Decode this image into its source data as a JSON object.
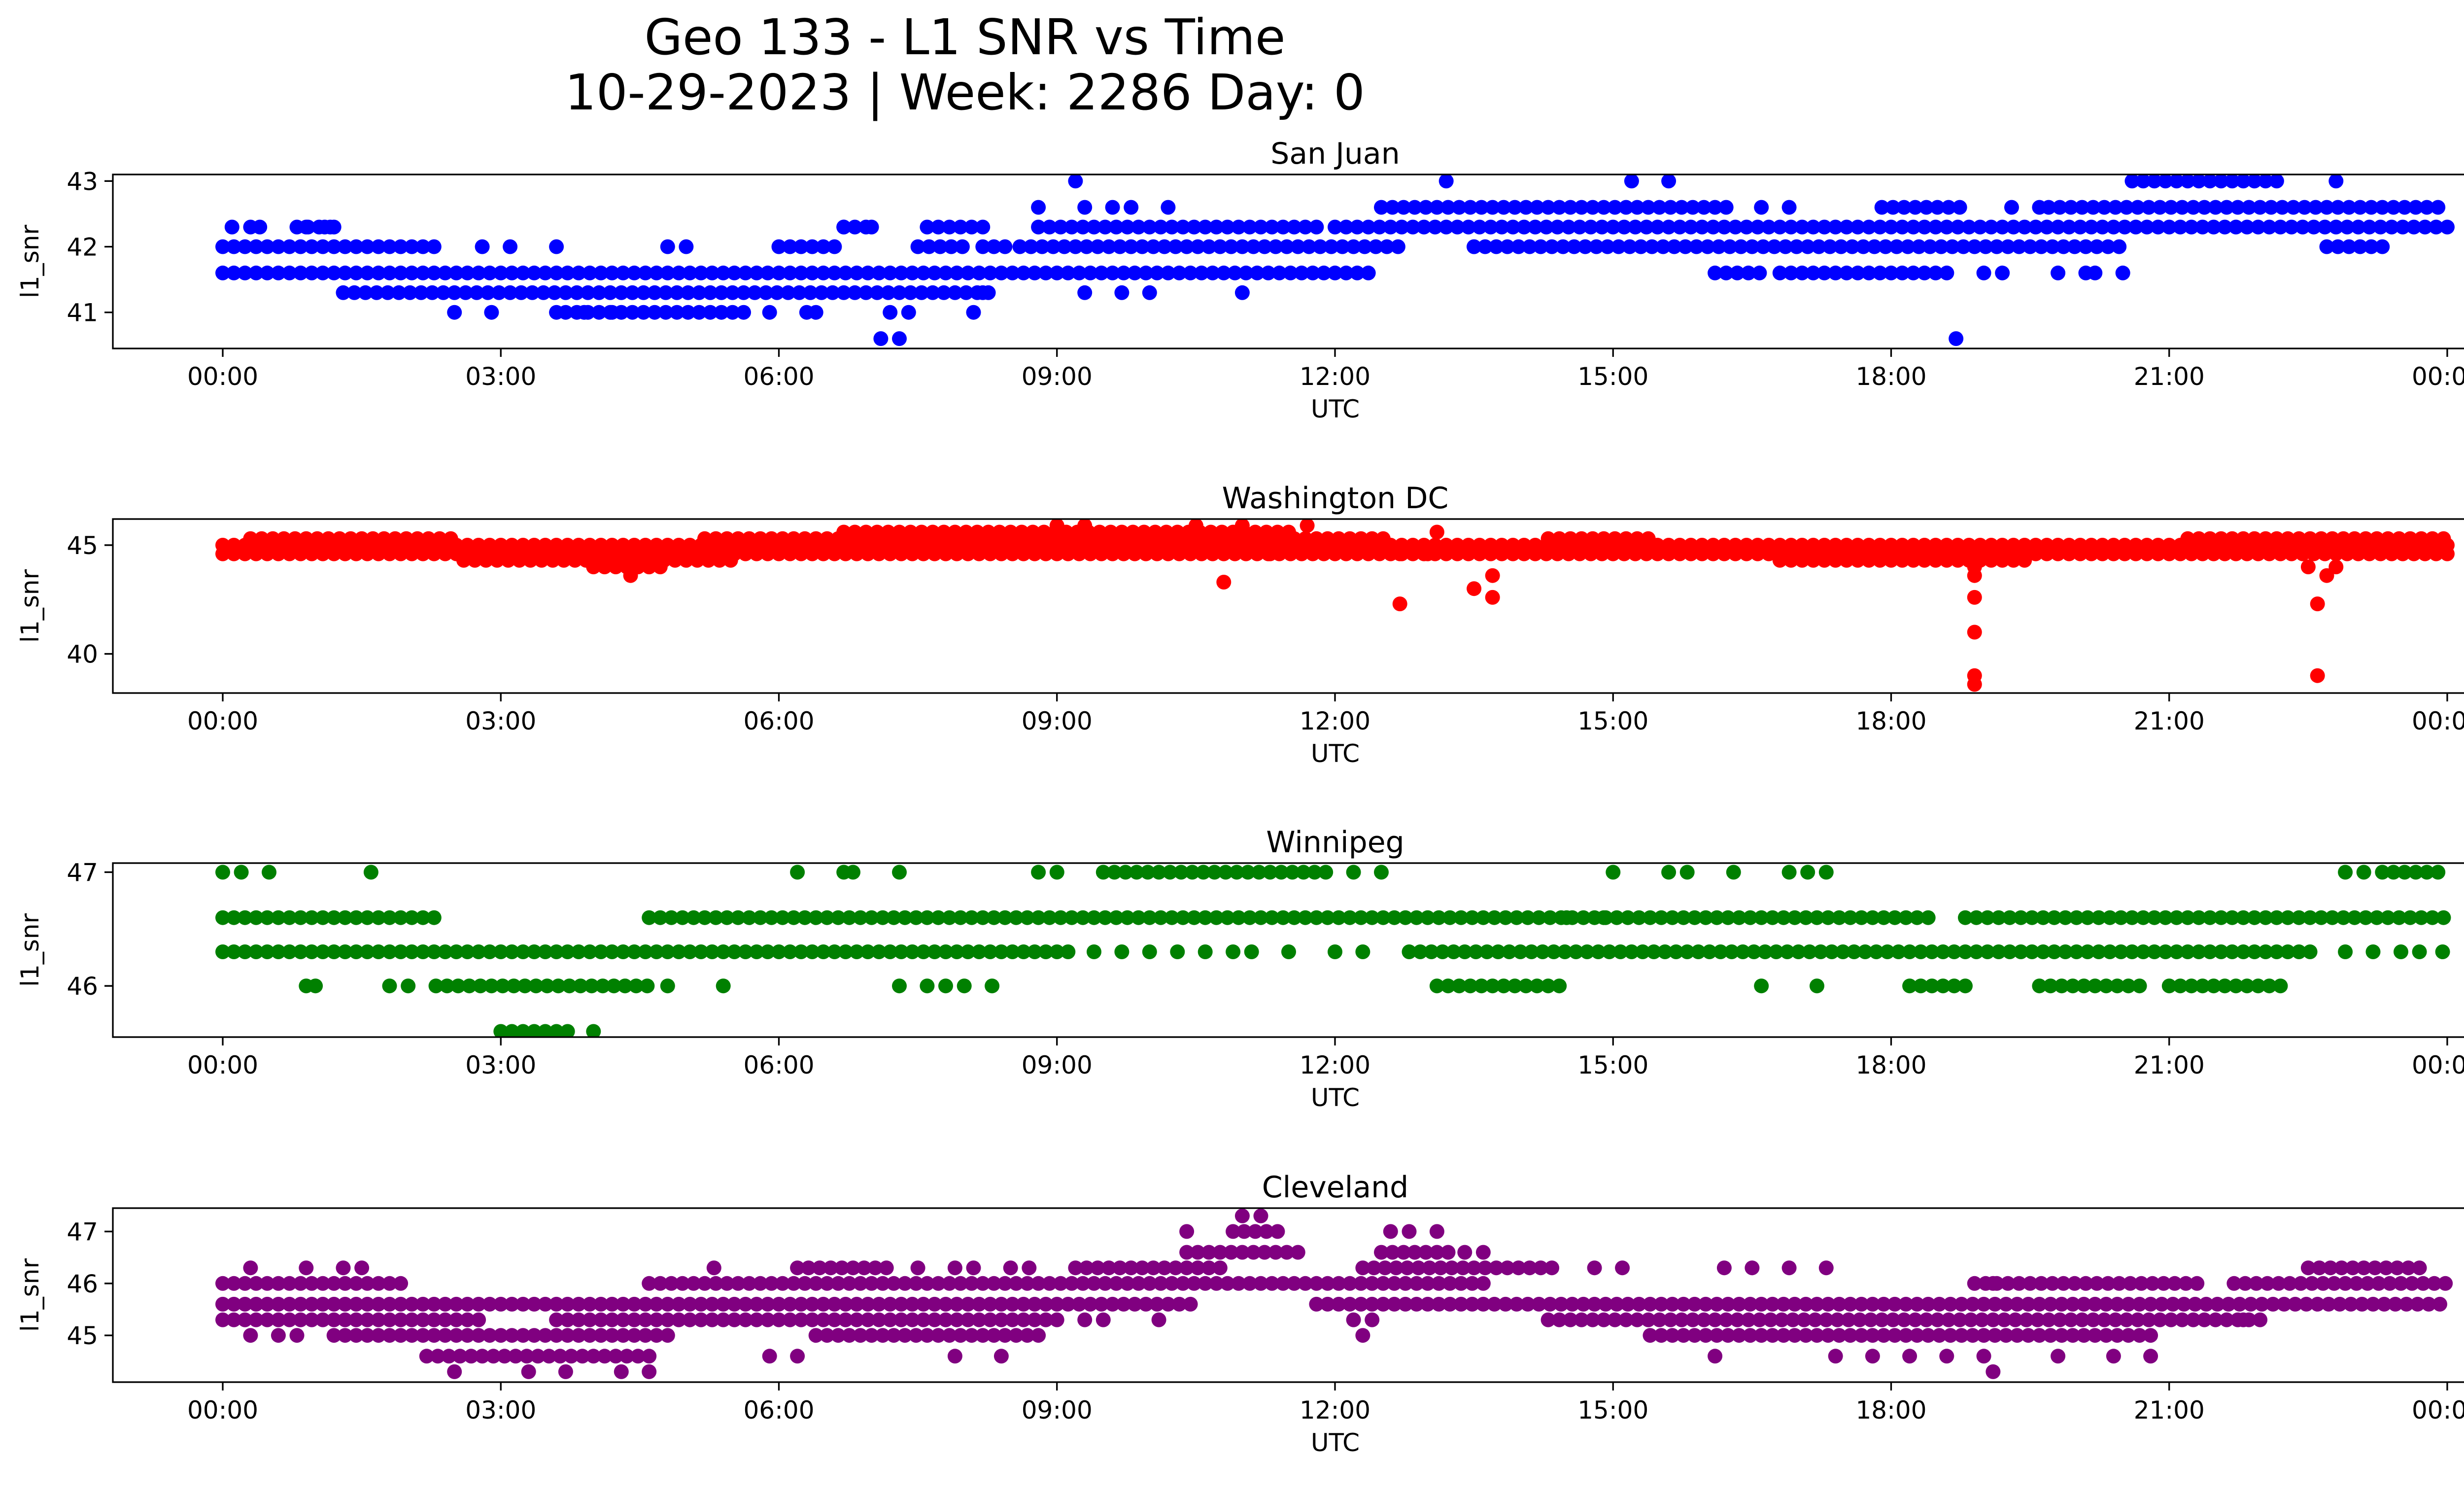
{
  "figure": {
    "title_line1": "Geo 133 - L1 SNR vs Time",
    "title_line2": "10-29-2023 | Week: 2286 Day: 0"
  },
  "chart_data": [
    {
      "type": "scatter",
      "title": "San Juan",
      "xlabel": "UTC",
      "ylabel": "l1_snr",
      "color": "#0000ff",
      "x_range_hours": [
        0,
        24
      ],
      "ylim": [
        40.45,
        43.1
      ],
      "yticks": [
        41,
        42,
        43
      ],
      "xticks": [
        "00:00",
        "03:00",
        "06:00",
        "09:00",
        "12:00",
        "15:00",
        "18:00",
        "21:00",
        "00:00"
      ],
      "grid": false,
      "band_segments": [
        {
          "y": 41.6,
          "ranges": [
            [
              0.0,
              12.4
            ],
            [
              16.1,
              16.6
            ],
            [
              16.8,
              18.6
            ]
          ]
        },
        {
          "y": 42.0,
          "ranges": [
            [
              0.0,
              2.3
            ],
            [
              6.0,
              6.6
            ],
            [
              7.5,
              8.0
            ],
            [
              8.2,
              8.5
            ],
            [
              8.6,
              12.7
            ],
            [
              13.5,
              20.5
            ],
            [
              22.7,
              23.3
            ]
          ]
        },
        {
          "y": 41.3,
          "ranges": [
            [
              1.3,
              8.3
            ]
          ]
        },
        {
          "y": 42.3,
          "ranges": [
            [
              0.8,
              1.2
            ],
            [
              6.7,
              7.0
            ],
            [
              7.6,
              8.2
            ],
            [
              8.8,
              11.8
            ],
            [
              12.0,
              24.0
            ]
          ]
        },
        {
          "y": 42.6,
          "ranges": [
            [
              12.5,
              16.3
            ],
            [
              17.9,
              18.8
            ],
            [
              19.7,
              24.0
            ]
          ]
        },
        {
          "y": 41.0,
          "ranges": [
            [
              3.7,
              5.7
            ]
          ]
        },
        {
          "y": 43.0,
          "ranges": [
            [
              20.6,
              22.2
            ]
          ]
        }
      ],
      "isolated_points": [
        [
          0.1,
          42.3
        ],
        [
          0.3,
          42.3
        ],
        [
          0.4,
          42.3
        ],
        [
          0.9,
          42.3
        ],
        [
          1.1,
          42.3
        ],
        [
          1.2,
          42.3
        ],
        [
          2.5,
          41.0
        ],
        [
          2.8,
          42.0
        ],
        [
          2.9,
          41.0
        ],
        [
          3.1,
          42.0
        ],
        [
          3.6,
          42.0
        ],
        [
          3.6,
          41.0
        ],
        [
          3.9,
          41.0
        ],
        [
          4.2,
          41.0
        ],
        [
          4.8,
          42.0
        ],
        [
          5.0,
          42.0
        ],
        [
          5.9,
          41.0
        ],
        [
          6.3,
          41.0
        ],
        [
          6.4,
          41.0
        ],
        [
          6.7,
          42.3
        ],
        [
          7.0,
          42.3
        ],
        [
          7.1,
          40.6
        ],
        [
          7.2,
          41.0
        ],
        [
          7.3,
          40.6
        ],
        [
          7.4,
          41.0
        ],
        [
          8.1,
          41.0
        ],
        [
          8.2,
          41.3
        ],
        [
          8.8,
          42.6
        ],
        [
          9.2,
          43.0
        ],
        [
          9.3,
          42.6
        ],
        [
          9.6,
          42.6
        ],
        [
          9.8,
          42.6
        ],
        [
          9.3,
          41.3
        ],
        [
          9.7,
          41.3
        ],
        [
          10.0,
          41.3
        ],
        [
          10.2,
          42.6
        ],
        [
          11.0,
          41.3
        ],
        [
          13.2,
          43.0
        ],
        [
          13.5,
          42.0
        ],
        [
          15.2,
          43.0
        ],
        [
          15.6,
          43.0
        ],
        [
          16.6,
          42.6
        ],
        [
          16.9,
          42.6
        ],
        [
          18.7,
          40.6
        ],
        [
          19.0,
          41.6
        ],
        [
          19.2,
          41.6
        ],
        [
          19.3,
          42.6
        ],
        [
          19.6,
          42.6
        ],
        [
          19.8,
          41.6
        ],
        [
          20.1,
          41.6
        ],
        [
          20.5,
          41.6
        ],
        [
          20.2,
          41.6
        ],
        [
          22.8,
          43.0
        ]
      ]
    },
    {
      "type": "scatter",
      "title": "Washington DC",
      "xlabel": "UTC",
      "ylabel": "l1_snr",
      "color": "#ff0000",
      "x_range_hours": [
        0,
        24
      ],
      "ylim": [
        38.2,
        46.2
      ],
      "yticks": [
        40,
        45
      ],
      "xticks": [
        "00:00",
        "03:00",
        "06:00",
        "09:00",
        "12:00",
        "15:00",
        "18:00",
        "21:00",
        "00:00"
      ],
      "grid": false,
      "band_segments": [
        {
          "y": 44.6,
          "ranges": [
            [
              0.0,
              24.0
            ]
          ]
        },
        {
          "y": 45.0,
          "ranges": [
            [
              0.0,
              24.0
            ]
          ]
        },
        {
          "y": 45.3,
          "ranges": [
            [
              0.3,
              2.5
            ],
            [
              5.2,
              12.6
            ],
            [
              14.3,
              15.4
            ],
            [
              21.2,
              24.0
            ]
          ]
        },
        {
          "y": 44.3,
          "ranges": [
            [
              2.6,
              5.5
            ],
            [
              16.8,
              19.5
            ]
          ]
        },
        {
          "y": 45.6,
          "ranges": [
            [
              6.7,
              11.6
            ]
          ]
        },
        {
          "y": 44.0,
          "ranges": [
            [
              4.0,
              4.8
            ]
          ]
        }
      ],
      "isolated_points": [
        [
          4.4,
          43.6
        ],
        [
          4.6,
          44.0
        ],
        [
          9.0,
          45.9
        ],
        [
          9.3,
          45.9
        ],
        [
          10.5,
          45.9
        ],
        [
          10.8,
          43.3
        ],
        [
          11.0,
          45.9
        ],
        [
          11.3,
          44.6
        ],
        [
          11.7,
          45.9
        ],
        [
          12.7,
          42.3
        ],
        [
          12.7,
          44.6
        ],
        [
          13.0,
          44.6
        ],
        [
          13.5,
          43.0
        ],
        [
          13.7,
          43.6
        ],
        [
          13.7,
          42.6
        ],
        [
          13.1,
          45.6
        ],
        [
          18.9,
          43.6
        ],
        [
          18.9,
          42.6
        ],
        [
          18.9,
          41.0
        ],
        [
          18.9,
          39.0
        ],
        [
          18.9,
          38.6
        ],
        [
          18.9,
          44.0
        ],
        [
          22.6,
          42.3
        ],
        [
          22.6,
          39.0
        ],
        [
          22.5,
          44.0
        ],
        [
          22.7,
          43.6
        ],
        [
          22.8,
          44.0
        ]
      ]
    },
    {
      "type": "scatter",
      "title": "Winnipeg",
      "xlabel": "UTC",
      "ylabel": "l1_snr",
      "color": "#008000",
      "x_range_hours": [
        0,
        24
      ],
      "ylim": [
        45.55,
        47.08
      ],
      "yticks": [
        46,
        47
      ],
      "xticks": [
        "00:00",
        "03:00",
        "06:00",
        "09:00",
        "12:00",
        "15:00",
        "18:00",
        "21:00",
        "00:00"
      ],
      "grid": false,
      "band_segments": [
        {
          "y": 46.6,
          "ranges": [
            [
              0.0,
              2.3
            ],
            [
              4.6,
              18.4
            ],
            [
              18.8,
              24.0
            ]
          ]
        },
        {
          "y": 46.3,
          "ranges": [
            [
              0.0,
              9.2
            ],
            [
              12.8,
              22.6
            ]
          ]
        },
        {
          "y": 46.0,
          "ranges": [
            [
              2.3,
              4.6
            ],
            [
              13.1,
              14.5
            ],
            [
              18.2,
              18.9
            ],
            [
              19.6,
              20.7
            ],
            [
              21.0,
              22.2
            ]
          ]
        },
        {
          "y": 47.0,
          "ranges": [
            [
              9.5,
              12.0
            ],
            [
              23.3,
              24.0
            ]
          ]
        },
        {
          "y": 45.6,
          "ranges": [
            [
              3.0,
              3.8
            ]
          ]
        }
      ],
      "isolated_points": [
        [
          0.0,
          47.0
        ],
        [
          0.2,
          47.0
        ],
        [
          0.5,
          47.0
        ],
        [
          1.6,
          47.0
        ],
        [
          6.2,
          47.0
        ],
        [
          6.7,
          47.0
        ],
        [
          6.8,
          47.0
        ],
        [
          7.3,
          47.0
        ],
        [
          8.8,
          47.0
        ],
        [
          9.0,
          47.0
        ],
        [
          12.2,
          47.0
        ],
        [
          12.5,
          47.0
        ],
        [
          15.0,
          47.0
        ],
        [
          15.6,
          47.0
        ],
        [
          15.8,
          47.0
        ],
        [
          16.3,
          47.0
        ],
        [
          16.9,
          47.0
        ],
        [
          17.1,
          47.0
        ],
        [
          17.3,
          47.0
        ],
        [
          22.9,
          47.0
        ],
        [
          23.1,
          47.0
        ],
        [
          0.9,
          46.0
        ],
        [
          1.0,
          46.0
        ],
        [
          1.8,
          46.0
        ],
        [
          2.0,
          46.0
        ],
        [
          4.8,
          46.0
        ],
        [
          5.4,
          46.0
        ],
        [
          7.3,
          46.0
        ],
        [
          7.6,
          46.0
        ],
        [
          7.8,
          46.0
        ],
        [
          8.0,
          46.0
        ],
        [
          8.3,
          46.0
        ],
        [
          16.6,
          46.0
        ],
        [
          17.2,
          46.0
        ],
        [
          9.4,
          46.3
        ],
        [
          9.7,
          46.3
        ],
        [
          10.0,
          46.3
        ],
        [
          10.3,
          46.3
        ],
        [
          10.6,
          46.3
        ],
        [
          10.9,
          46.3
        ],
        [
          11.1,
          46.3
        ],
        [
          11.5,
          46.3
        ],
        [
          12.0,
          46.3
        ],
        [
          12.3,
          46.3
        ],
        [
          22.9,
          46.3
        ],
        [
          23.2,
          46.3
        ],
        [
          23.5,
          46.3
        ],
        [
          23.7,
          46.3
        ],
        [
          23.95,
          46.3
        ],
        [
          14.5,
          46.6
        ],
        [
          14.9,
          46.6
        ],
        [
          4.0,
          45.6
        ]
      ]
    },
    {
      "type": "scatter",
      "title": "Cleveland",
      "xlabel": "UTC",
      "ylabel": "l1_snr",
      "color": "#800080",
      "x_range_hours": [
        0,
        24
      ],
      "ylim": [
        44.1,
        47.45
      ],
      "yticks": [
        45,
        46,
        47
      ],
      "xticks": [
        "00:00",
        "03:00",
        "06:00",
        "09:00",
        "12:00",
        "15:00",
        "18:00",
        "21:00",
        "00:00"
      ],
      "grid": false,
      "band_segments": [
        {
          "y": 45.6,
          "ranges": [
            [
              0.0,
              10.5
            ],
            [
              11.8,
              24.0
            ]
          ]
        },
        {
          "y": 45.3,
          "ranges": [
            [
              0.0,
              2.8
            ],
            [
              3.6,
              9.0
            ],
            [
              14.3,
              22.0
            ]
          ]
        },
        {
          "y": 46.0,
          "ranges": [
            [
              0.0,
              2.0
            ],
            [
              4.6,
              13.7
            ],
            [
              18.9,
              21.3
            ],
            [
              21.7,
              24.0
            ]
          ]
        },
        {
          "y": 45.0,
          "ranges": [
            [
              1.2,
              4.8
            ],
            [
              6.4,
              8.8
            ],
            [
              15.4,
              20.8
            ]
          ]
        },
        {
          "y": 44.6,
          "ranges": [
            [
              2.2,
              4.6
            ]
          ]
        },
        {
          "y": 46.3,
          "ranges": [
            [
              6.2,
              7.2
            ],
            [
              9.2,
              10.8
            ],
            [
              12.3,
              14.4
            ],
            [
              22.5,
              23.8
            ]
          ]
        },
        {
          "y": 46.6,
          "ranges": [
            [
              10.4,
              11.6
            ],
            [
              12.5,
              13.3
            ]
          ]
        },
        {
          "y": 47.0,
          "ranges": [
            [
              10.9,
              11.4
            ]
          ]
        }
      ],
      "isolated_points": [
        [
          0.3,
          46.3
        ],
        [
          0.9,
          46.3
        ],
        [
          1.3,
          46.3
        ],
        [
          1.5,
          46.3
        ],
        [
          5.3,
          46.3
        ],
        [
          7.5,
          46.3
        ],
        [
          7.9,
          46.3
        ],
        [
          8.1,
          46.3
        ],
        [
          8.5,
          46.3
        ],
        [
          8.7,
          46.3
        ],
        [
          14.8,
          46.3
        ],
        [
          15.1,
          46.3
        ],
        [
          16.2,
          46.3
        ],
        [
          16.5,
          46.3
        ],
        [
          16.9,
          46.3
        ],
        [
          17.3,
          46.3
        ],
        [
          0.3,
          45.0
        ],
        [
          0.6,
          45.0
        ],
        [
          0.8,
          45.0
        ],
        [
          9.3,
          45.3
        ],
        [
          9.5,
          45.3
        ],
        [
          10.1,
          45.3
        ],
        [
          12.2,
          45.3
        ],
        [
          12.3,
          45.0
        ],
        [
          12.4,
          45.3
        ],
        [
          5.9,
          44.6
        ],
        [
          6.2,
          44.6
        ],
        [
          7.9,
          44.6
        ],
        [
          8.4,
          44.6
        ],
        [
          16.1,
          44.6
        ],
        [
          17.4,
          44.6
        ],
        [
          17.8,
          44.6
        ],
        [
          18.2,
          44.6
        ],
        [
          18.6,
          44.6
        ],
        [
          19.0,
          44.6
        ],
        [
          19.8,
          44.6
        ],
        [
          20.4,
          44.6
        ],
        [
          20.8,
          44.6
        ],
        [
          2.5,
          44.3
        ],
        [
          3.3,
          44.3
        ],
        [
          3.7,
          44.3
        ],
        [
          4.3,
          44.3
        ],
        [
          4.6,
          44.3
        ],
        [
          19.1,
          44.3
        ],
        [
          10.4,
          47.0
        ],
        [
          11.0,
          47.3
        ],
        [
          11.2,
          47.3
        ],
        [
          12.6,
          47.0
        ],
        [
          12.8,
          47.0
        ],
        [
          13.1,
          47.0
        ],
        [
          13.4,
          46.6
        ],
        [
          13.6,
          46.6
        ],
        [
          19.1,
          46.0
        ],
        [
          21.8,
          45.3
        ]
      ]
    }
  ]
}
